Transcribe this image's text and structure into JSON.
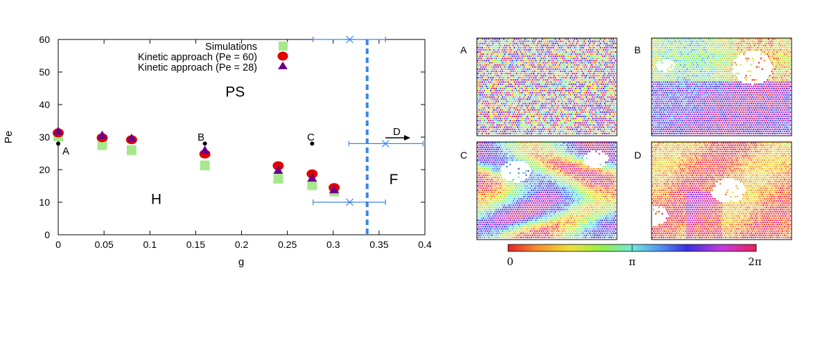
{
  "chart_data": [
    {
      "type": "scatter",
      "xlabel": "g",
      "ylabel": "Pe",
      "xlim": [
        0,
        0.4
      ],
      "ylim": [
        0,
        60
      ],
      "xticks": [
        "0",
        "0.05",
        "0.1",
        "0.15",
        "0.2",
        "0.25",
        "0.3",
        "0.35",
        "0.4"
      ],
      "xtick_values": [
        0,
        0.05,
        0.1,
        0.15,
        0.2,
        0.25,
        0.3,
        0.35,
        0.4
      ],
      "yticks": [
        "0",
        "10",
        "20",
        "30",
        "40",
        "50",
        "60"
      ],
      "ytick_values": [
        0,
        10,
        20,
        30,
        40,
        50,
        60
      ],
      "legend": {
        "position": "top-left",
        "entries": [
          "Simulations",
          "Kinetic approach (Pe = 60)",
          "Kinetic approach (Pe = 28)"
        ]
      },
      "series": [
        {
          "name": "Simulations",
          "marker": "square",
          "color": "#a6e88c",
          "x": [
            0,
            0.048,
            0.08,
            0.16,
            0.24,
            0.277,
            0.301
          ],
          "y": [
            30.2,
            27.5,
            26.0,
            21.3,
            17.2,
            15.2,
            13.3
          ]
        },
        {
          "name": "Kinetic approach (Pe = 60)",
          "marker": "circle",
          "color": "#e00000",
          "x": [
            0,
            0.048,
            0.08,
            0.16,
            0.24,
            0.277,
            0.301
          ],
          "y": [
            31.3,
            29.8,
            29.2,
            24.8,
            21.2,
            18.7,
            14.5
          ]
        },
        {
          "name": "Kinetic approach (Pe = 28)",
          "marker": "triangle",
          "color": "#6a008a",
          "x": [
            0,
            0.048,
            0.08,
            0.16,
            0.24,
            0.277,
            0.301
          ],
          "y": [
            31.8,
            30.5,
            29.6,
            25.9,
            19.8,
            17.4,
            13.8
          ]
        }
      ],
      "state_points": [
        {
          "label": "A",
          "x": 0,
          "y": 28
        },
        {
          "label": "B",
          "x": 0.16,
          "y": 28
        },
        {
          "label": "C",
          "x": 0.277,
          "y": 28
        },
        {
          "label": "D",
          "x": 0.385,
          "y": 30
        }
      ],
      "errorbar_points": [
        {
          "x": 0.318,
          "y": 60,
          "xmin": 0.278,
          "xmax": 0.357
        },
        {
          "x": 0.357,
          "y": 28,
          "xmin": 0.317,
          "xmax": 0.398
        },
        {
          "x": 0.318,
          "y": 10,
          "xmin": 0.278,
          "xmax": 0.357
        }
      ],
      "threshold_line": {
        "x": 0.337,
        "color": "#3a86e6",
        "style": "dashed"
      },
      "region_labels": [
        {
          "text": "PS",
          "x": 0.193,
          "y": 42.5
        },
        {
          "text": "H",
          "x": 0.107,
          "y": 9.5
        },
        {
          "text": "F",
          "x": 0.366,
          "y": 15.5
        }
      ]
    },
    {
      "type": "heatmap",
      "panels": [
        "A",
        "B",
        "C",
        "D"
      ],
      "colorbar": {
        "ticks": [
          "0",
          "π",
          "2π"
        ],
        "range": [
          0,
          6.2832
        ]
      }
    }
  ]
}
